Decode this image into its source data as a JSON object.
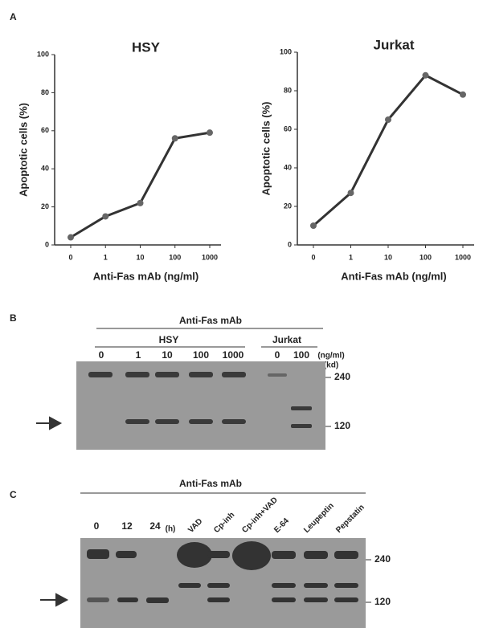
{
  "panels": {
    "a": "A",
    "b": "B",
    "c": "C"
  },
  "chart_data": [
    {
      "type": "line",
      "title": "HSY",
      "x_label": "Anti-Fas mAb (ng/ml)",
      "y_label": "Apoptotic cells (%)",
      "categories": [
        "0",
        "1",
        "10",
        "100",
        "1000"
      ],
      "values": [
        4,
        15,
        22,
        56,
        59
      ],
      "color": "#333333",
      "ylim": [
        0,
        100
      ],
      "yticks": [
        0,
        20,
        40,
        60,
        80,
        100
      ],
      "grid": false
    },
    {
      "type": "line",
      "title": "Jurkat",
      "x_label": "Anti-Fas mAb (ng/ml)",
      "y_label": "Apoptotic cells (%)",
      "categories": [
        "0",
        "1",
        "10",
        "100",
        "1000"
      ],
      "values": [
        10,
        27,
        65,
        88,
        78
      ],
      "color": "#333333",
      "ylim": [
        0,
        100
      ],
      "yticks": [
        0,
        20,
        40,
        60,
        80,
        100
      ],
      "grid": false
    }
  ],
  "blot_b": {
    "header": "Anti-Fas mAb",
    "group_1": "HSY",
    "group_2": "Jurkat",
    "lanes": [
      "0",
      "1",
      "10",
      "100",
      "1000",
      "0",
      "100"
    ],
    "unit": "(ng/ml)",
    "size_unit": "(kd)",
    "markers": [
      "240",
      "120"
    ]
  },
  "blot_c": {
    "header": "Anti-Fas mAb",
    "lanes": [
      "0",
      "12",
      "24"
    ],
    "time_unit": "(h)",
    "treatments": [
      "VAD",
      "Cp-inh",
      "Cp-inh+VAD",
      "E-64",
      "Leupeptin",
      "Pepstatin"
    ],
    "markers": [
      "240",
      "120"
    ]
  }
}
